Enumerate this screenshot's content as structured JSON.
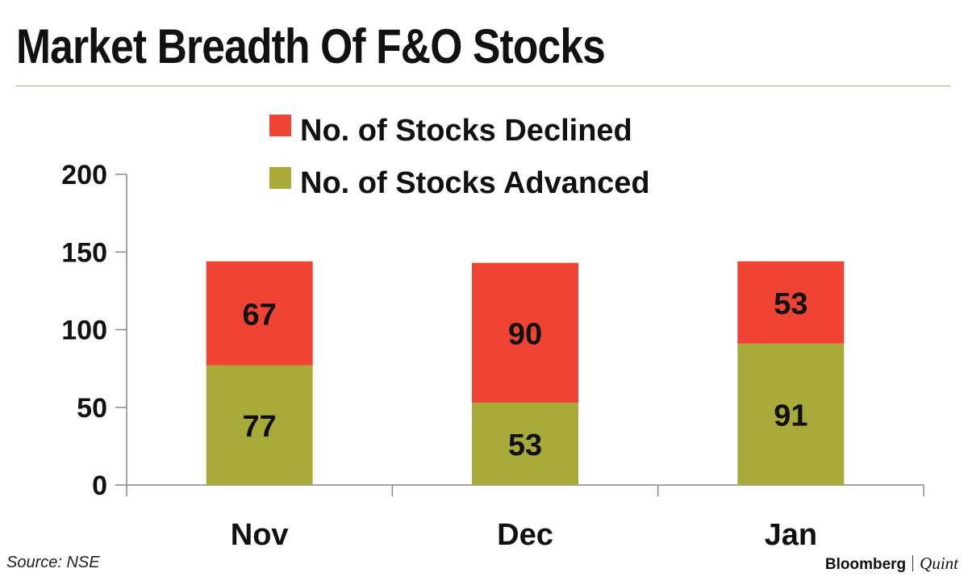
{
  "title": "Market Breadth Of F&O Stocks",
  "source": "Source: NSE",
  "brand": {
    "primary": "Bloomberg",
    "secondary": "Quint"
  },
  "colors": {
    "declined": "#ef4433",
    "advanced": "#a8ab3a",
    "axis": "#888888",
    "rule": "#c9a27e"
  },
  "chart_data": {
    "type": "bar",
    "stacked": true,
    "categories": [
      "Nov",
      "Dec",
      "Jan"
    ],
    "series": [
      {
        "name": "No. of Stocks Advanced",
        "values": [
          77,
          53,
          91
        ],
        "color": "#a8ab3a"
      },
      {
        "name": "No. of Stocks Declined",
        "values": [
          67,
          90,
          53
        ],
        "color": "#ef4433"
      }
    ],
    "ylim": [
      0,
      200
    ],
    "yticks": [
      0,
      50,
      100,
      150,
      200
    ],
    "legend_order": [
      "No. of Stocks Declined",
      "No. of Stocks Advanced"
    ],
    "legend_position": "top-center",
    "grid": false
  }
}
